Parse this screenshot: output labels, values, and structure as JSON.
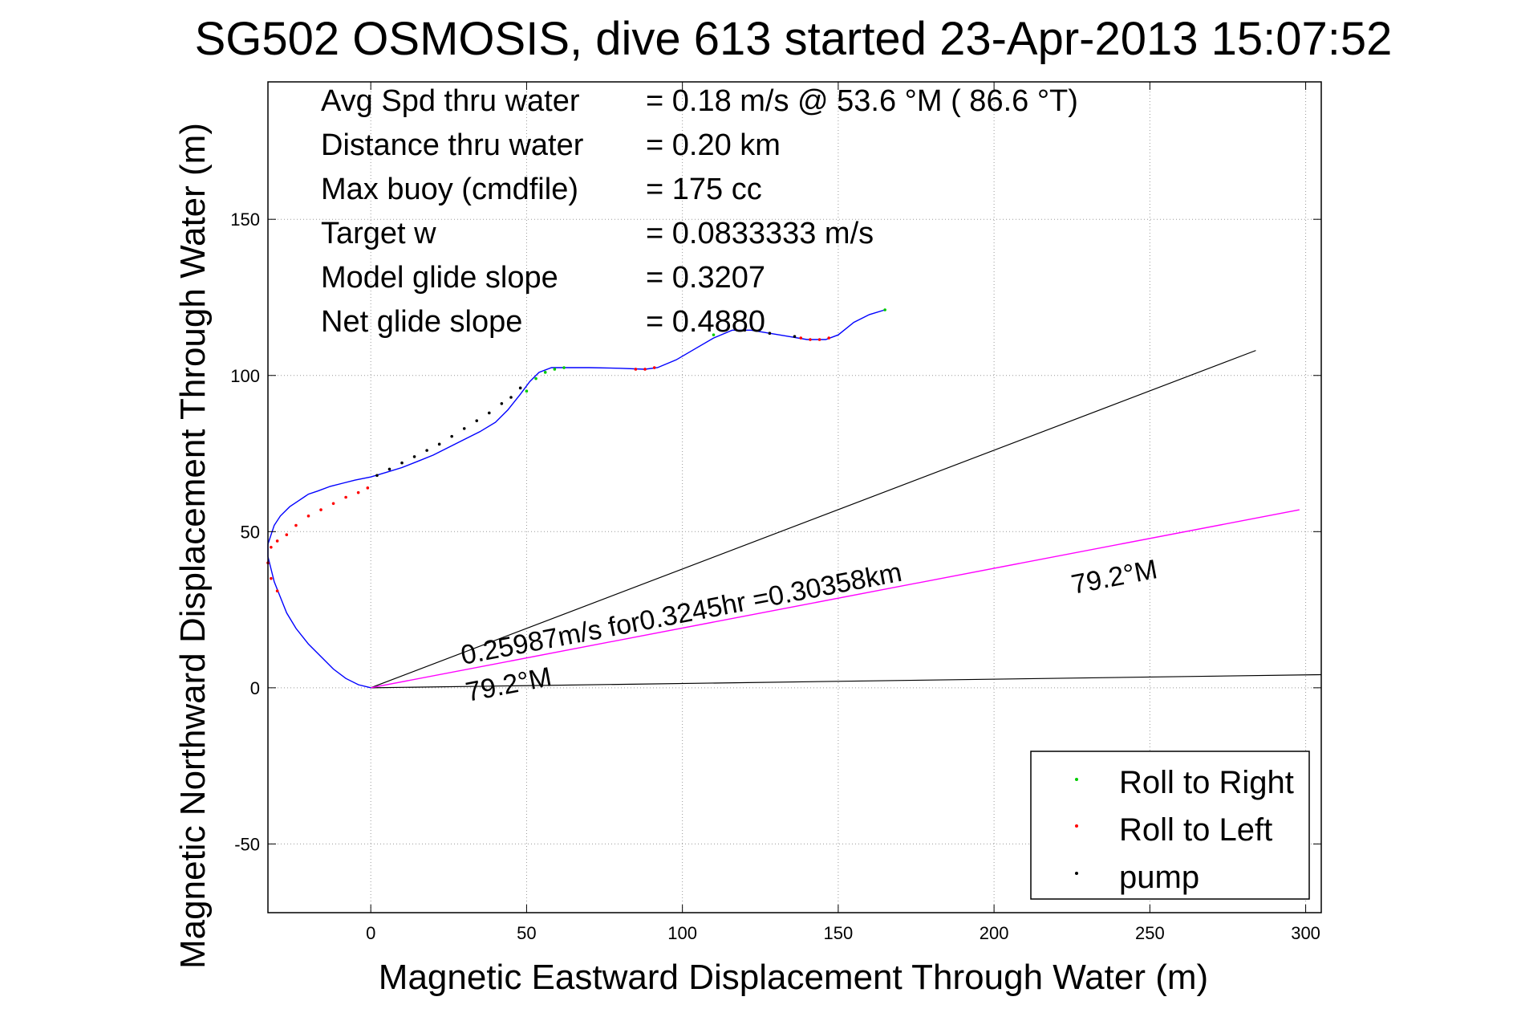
{
  "chart_data": {
    "type": "line",
    "title": "SG502 OSMOSIS, dive 613 started 23-Apr-2013 15:07:52",
    "xlabel": "Magnetic Eastward Displacement Through Water (m)",
    "ylabel": "Magnetic Northward Displacement Through Water (m)",
    "xlim": [
      -33,
      305
    ],
    "ylim": [
      -72,
      194
    ],
    "xticks": [
      0,
      50,
      100,
      150,
      200,
      250,
      300
    ],
    "yticks": [
      -50,
      0,
      50,
      100,
      150
    ],
    "xtick_labels": [
      "0",
      "50",
      "100",
      "150",
      "200",
      "250",
      "300"
    ],
    "ytick_labels": [
      "-50",
      "0",
      "50",
      "100",
      "150"
    ],
    "grid": true,
    "legend_position": "bottom-right",
    "info_lines": [
      {
        "label": "Avg Spd thru water",
        "value": "=  0.18 m/s @  53.6 °M ( 86.6 °T)"
      },
      {
        "label": "Distance thru water",
        "value": "=  0.20 km"
      },
      {
        "label": "Max buoy (cmdfile)",
        "value": "= 175 cc"
      },
      {
        "label": "Target w",
        "value": "= 0.0833333 m/s"
      },
      {
        "label": "Model glide slope",
        "value": "= 0.3207"
      },
      {
        "label": "Net glide slope",
        "value": "= 0.4880"
      }
    ],
    "annotations": {
      "current_text": "0.25987m/s for0.3245hr =0.30358km",
      "heading_label_1": "79.2°M",
      "heading_label_2": "79.2°M"
    },
    "legend": [
      {
        "label": "Roll to Right",
        "color": "#00cc00"
      },
      {
        "label": "Roll to Left",
        "color": "#ff0000"
      },
      {
        "label": "pump",
        "color": "#000000"
      }
    ],
    "colors": {
      "track": "#0000ff",
      "current": "#ff00ff",
      "reference_lines": "#000000",
      "grid": "#999999"
    },
    "track": {
      "x": [
        0,
        -4,
        -8,
        -12,
        -16,
        -20,
        -24,
        -27,
        -29,
        -31,
        -32,
        -33,
        -33,
        -32,
        -31,
        -29,
        -26,
        -23,
        -20,
        -17,
        -13,
        -9,
        -5,
        0,
        5,
        10,
        15,
        20,
        25,
        30,
        35,
        40,
        44,
        48,
        51,
        54,
        58,
        63,
        70,
        80,
        88,
        92,
        98,
        104,
        110,
        116,
        122,
        128,
        134,
        140,
        146,
        150,
        155,
        160,
        165
      ],
      "y": [
        0,
        1,
        3,
        6,
        10,
        14,
        19,
        24,
        29,
        34,
        38,
        42,
        46,
        49,
        52,
        55,
        58,
        60,
        62,
        63,
        64.5,
        65.5,
        66.5,
        67.5,
        69,
        70.5,
        72.5,
        74.5,
        77,
        79.5,
        82,
        85,
        89,
        94,
        98,
        101,
        102.5,
        102.5,
        102.5,
        102.3,
        102,
        102.5,
        105,
        108.5,
        112,
        114.5,
        114.5,
        113.5,
        112.5,
        111.5,
        111.5,
        113,
        117,
        119.5,
        121
      ]
    },
    "roll_right_points": {
      "x": [
        50,
        53,
        56,
        59,
        62,
        110,
        165
      ],
      "y": [
        95,
        99,
        101,
        102,
        102.5,
        113,
        121
      ]
    },
    "roll_left_points": {
      "x": [
        -30,
        -32,
        -33,
        -32,
        -30,
        -27,
        -24,
        -20,
        -16,
        -12,
        -8,
        -4,
        -1,
        85,
        88,
        91,
        138,
        141,
        144,
        147
      ],
      "y": [
        31,
        35,
        40,
        45,
        47,
        49,
        52,
        55,
        57,
        59,
        61,
        62.5,
        64,
        102,
        102,
        102.5,
        112,
        111.5,
        111.5,
        112
      ]
    },
    "pump_points": {
      "x": [
        2,
        6,
        10,
        14,
        18,
        22,
        26,
        30,
        34,
        38,
        42,
        45,
        48,
        120,
        128,
        136
      ],
      "y": [
        68,
        70,
        72,
        74,
        76,
        78,
        80.5,
        83,
        85.5,
        88,
        91,
        93,
        96,
        114.5,
        113.5,
        112.5
      ]
    },
    "reference_lines": [
      {
        "x": [
          0,
          284
        ],
        "y": [
          0,
          108
        ]
      },
      {
        "x": [
          0,
          305
        ],
        "y": [
          0,
          4.2
        ]
      }
    ],
    "current_line": {
      "x": [
        0,
        298
      ],
      "y": [
        0,
        57
      ]
    }
  }
}
